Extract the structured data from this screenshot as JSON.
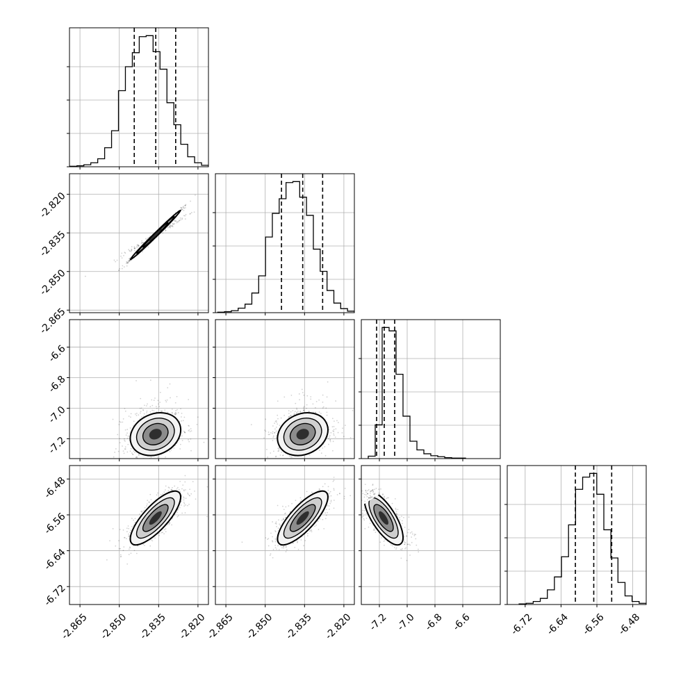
{
  "chart_data": {
    "type": "corner",
    "parameters": [
      {
        "xlim": [
          -2.869,
          -2.816
        ],
        "ticks": [
          "-2.865",
          "-2.850",
          "-2.835",
          "-2.820"
        ]
      },
      {
        "xlim": [
          -2.869,
          -2.816
        ],
        "ticks": [
          "-2.865",
          "-2.850",
          "-2.835",
          "-2.820"
        ]
      },
      {
        "xlim": [
          -7.33,
          -6.33
        ],
        "ticks": [
          "-7.2",
          "-7.0",
          "-6.8",
          "-6.6"
        ]
      },
      {
        "xlim": [
          -6.76,
          -6.45
        ],
        "ticks": [
          "-6.72",
          "-6.64",
          "-6.56",
          "-6.48"
        ]
      }
    ],
    "x_tick_values": [
      [
        -2.865,
        -2.85,
        -2.835,
        -2.82
      ],
      [
        -2.865,
        -2.85,
        -2.835,
        -2.82
      ],
      [
        -7.2,
        -7.0,
        -6.8,
        -6.6
      ],
      [
        -6.72,
        -6.64,
        -6.56,
        -6.48
      ]
    ],
    "y_axes": [
      null,
      {
        "ylim": [
          -2.866,
          -2.812
        ],
        "ticks": [
          "-2.820",
          "-2.835",
          "-2.850",
          "-2.865"
        ],
        "values": [
          -2.82,
          -2.835,
          -2.85,
          -2.865
        ]
      },
      {
        "ylim": [
          -7.33,
          -6.42
        ],
        "ticks": [
          "-6.6",
          "-6.8",
          "-7.0",
          "-7.2"
        ],
        "values": [
          -6.6,
          -6.8,
          -7.0,
          -7.2
        ]
      },
      {
        "ylim": [
          -6.76,
          -6.45
        ],
        "ticks": [
          "-6.48",
          "-6.56",
          "-6.64",
          "-6.72"
        ],
        "values": [
          -6.48,
          -6.56,
          -6.64,
          -6.72
        ]
      }
    ],
    "histograms": [
      {
        "quantiles": [
          -2.8443,
          -2.8361,
          -2.8285
        ],
        "counts": [
          1,
          2,
          4,
          8,
          16,
          38,
          72,
          152,
          200,
          228,
          260,
          262,
          230,
          195,
          128,
          84,
          45,
          20,
          8,
          3
        ]
      },
      {
        "quantiles": [
          -2.8438,
          -2.8357,
          -2.8281
        ],
        "counts": [
          1,
          2,
          4,
          9,
          17,
          39,
          73,
          150,
          197,
          226,
          258,
          260,
          229,
          193,
          126,
          82,
          44,
          19,
          8,
          3
        ]
      },
      {
        "quantiles": [
          -7.22,
          -7.165,
          -7.09
        ],
        "counts": [
          5,
          70,
          272,
          265,
          175,
          88,
          36,
          18,
          10,
          6,
          4,
          2,
          1,
          1
        ]
      },
      {
        "quantiles": [
          -6.608,
          -6.567,
          -6.527
        ],
        "counts": [
          1,
          2,
          5,
          10,
          24,
          45,
          78,
          130,
          188,
          208,
          214,
          180,
          122,
          76,
          36,
          14,
          5,
          2
        ]
      }
    ],
    "densities_2d": [
      {
        "row": 1,
        "col": 0,
        "center": [
          -2.8362,
          -2.8358
        ],
        "sigma": [
          0.0048,
          0.0048
        ],
        "rho": 0.995
      },
      {
        "row": 2,
        "col": 0,
        "center": [
          -2.8362,
          -7.17
        ],
        "sigma": [
          0.0048,
          0.07
        ],
        "rho": 0.2
      },
      {
        "row": 2,
        "col": 1,
        "center": [
          -2.8357,
          -7.17
        ],
        "sigma": [
          0.0048,
          0.07
        ],
        "rho": 0.2
      },
      {
        "row": 3,
        "col": 0,
        "center": [
          -2.8362,
          -6.567
        ],
        "sigma": [
          0.0048,
          0.03
        ],
        "rho": 0.78
      },
      {
        "row": 3,
        "col": 1,
        "center": [
          -2.8357,
          -6.567
        ],
        "sigma": [
          0.0048,
          0.03
        ],
        "rho": 0.78
      },
      {
        "row": 3,
        "col": 2,
        "center": [
          -7.17,
          -6.567
        ],
        "sigma": [
          0.07,
          0.03
        ],
        "rho": -0.72
      }
    ],
    "grid": true,
    "contour_levels": [
      "0.5-sigma",
      "1-sigma",
      "1.5-sigma",
      "2-sigma"
    ],
    "title": "",
    "xlabel": "",
    "ylabel": ""
  }
}
